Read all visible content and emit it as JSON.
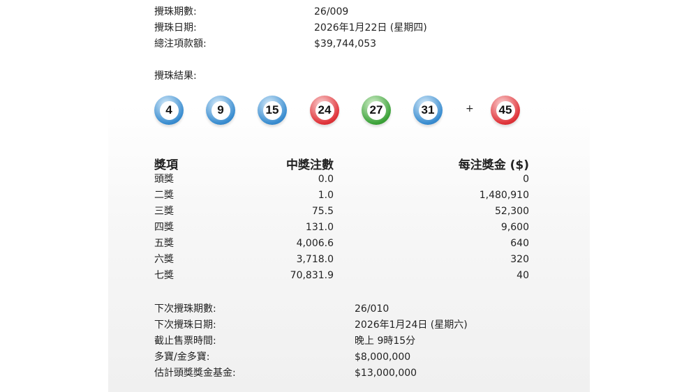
{
  "draw": {
    "items": [
      {
        "label": "攪珠期數:",
        "value": "26/009"
      },
      {
        "label": "攪珠日期:",
        "value": "2026年1月22日 (星期四)"
      },
      {
        "label": "總注項款額:",
        "value": "$39,744,053"
      }
    ],
    "results_label": "攪珠結果:",
    "balls": [
      {
        "number": "4",
        "color": "blue"
      },
      {
        "number": "9",
        "color": "blue"
      },
      {
        "number": "15",
        "color": "blue"
      },
      {
        "number": "24",
        "color": "red"
      },
      {
        "number": "27",
        "color": "green"
      },
      {
        "number": "31",
        "color": "blue"
      }
    ],
    "plus": "+",
    "extra_ball": {
      "number": "45",
      "color": "red"
    }
  },
  "prizes": {
    "headers": [
      "獎項",
      "中獎注數",
      "每注獎金 ($)"
    ],
    "rows": [
      {
        "name": "頭獎",
        "winners": "0.0",
        "amount": "0"
      },
      {
        "name": "二獎",
        "winners": "1.0",
        "amount": "1,480,910"
      },
      {
        "name": "三獎",
        "winners": "75.5",
        "amount": "52,300"
      },
      {
        "name": "四獎",
        "winners": "131.0",
        "amount": "9,600"
      },
      {
        "name": "五獎",
        "winners": "4,006.6",
        "amount": "640"
      },
      {
        "name": "六獎",
        "winners": "3,718.0",
        "amount": "320"
      },
      {
        "name": "七獎",
        "winners": "70,831.9",
        "amount": "40"
      }
    ]
  },
  "next_draw": [
    {
      "label": "下次攪珠期數:",
      "value": "26/010"
    },
    {
      "label": "下次攪珠日期:",
      "value": "2026年1月24日 (星期六)"
    },
    {
      "label": "截止售票時間:",
      "value": "晚上 9時15分"
    },
    {
      "label": "多寶/金多寶:",
      "value": "$8,000,000"
    },
    {
      "label": "估計頭獎獎金基金:",
      "value": "$13,000,000"
    }
  ]
}
